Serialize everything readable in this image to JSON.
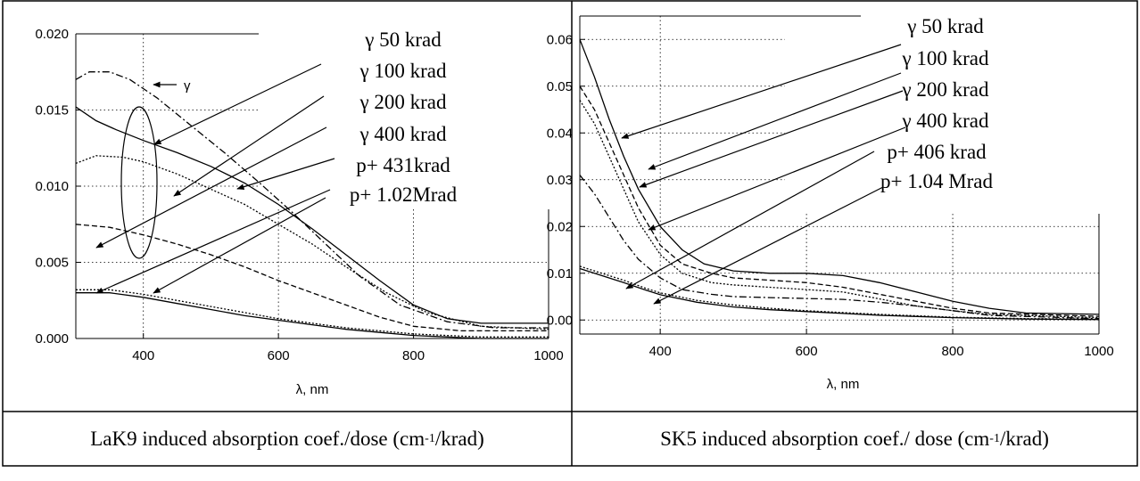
{
  "chart_data": [
    {
      "type": "line",
      "xlabel": "λ, nm",
      "ylabel": "",
      "xlim": [
        300,
        1000
      ],
      "ylim": [
        0,
        0.02
      ],
      "xticks": [
        400,
        600,
        800,
        1000
      ],
      "xtick_labels": [
        "400",
        "600",
        "800",
        "1000"
      ],
      "yticks": [
        0,
        0.005,
        0.01,
        0.015,
        0.02
      ],
      "ytick_labels": [
        "0.000",
        "0.005",
        "0.010",
        "0.015",
        "0.020"
      ],
      "grid": "dotted",
      "caption": {
        "pre": "LaK9 induced absorption coef./dose (cm",
        "sup": "-1",
        "post": "/krad)"
      },
      "group_label": "γ",
      "series": [
        {
          "name": "γ 50 krad",
          "dash": "none",
          "x": [
            300,
            330,
            360,
            400,
            450,
            500,
            550,
            600,
            650,
            700,
            750,
            800,
            850,
            900,
            1000
          ],
          "y": [
            0.0152,
            0.0143,
            0.0137,
            0.013,
            0.0122,
            0.0113,
            0.0102,
            0.0088,
            0.0072,
            0.0055,
            0.0038,
            0.0022,
            0.0013,
            0.001,
            0.001
          ]
        },
        {
          "name": "γ 100 krad",
          "dash": "8 3 2 3",
          "x": [
            300,
            320,
            350,
            380,
            420,
            470,
            520,
            570,
            620,
            670,
            720,
            780,
            850,
            920,
            1000
          ],
          "y": [
            0.017,
            0.0175,
            0.0175,
            0.017,
            0.0158,
            0.014,
            0.0122,
            0.0103,
            0.0083,
            0.0062,
            0.0041,
            0.0022,
            0.0011,
            0.0007,
            0.0007
          ]
        },
        {
          "name": "γ 200 krad",
          "dash": "2 2",
          "x": [
            300,
            330,
            370,
            400,
            450,
            500,
            550,
            600,
            650,
            700,
            760,
            820,
            900,
            1000
          ],
          "y": [
            0.0115,
            0.012,
            0.0119,
            0.0116,
            0.0108,
            0.0098,
            0.0088,
            0.0075,
            0.0062,
            0.0047,
            0.003,
            0.0017,
            0.0008,
            0.0006
          ]
        },
        {
          "name": "γ 400 krad",
          "dash": "6 3",
          "x": [
            300,
            350,
            400,
            450,
            500,
            550,
            600,
            650,
            700,
            750,
            800,
            870,
            950,
            1000
          ],
          "y": [
            0.0075,
            0.0073,
            0.0068,
            0.0062,
            0.0055,
            0.0047,
            0.0038,
            0.003,
            0.0022,
            0.0014,
            0.0008,
            0.0005,
            0.0005,
            0.0005
          ]
        },
        {
          "name": "p+ 431krad",
          "dash": "2 2",
          "x": [
            300,
            350,
            400,
            450,
            500,
            550,
            600,
            650,
            700,
            750,
            800,
            850,
            900,
            1000
          ],
          "y": [
            0.0032,
            0.0032,
            0.0029,
            0.0025,
            0.0021,
            0.0017,
            0.0013,
            0.001,
            0.0007,
            0.0005,
            0.0003,
            0.0002,
            0.0001,
            0.0001
          ]
        },
        {
          "name": "p+ 1.02Mrad",
          "dash": "none",
          "x": [
            300,
            350,
            400,
            450,
            500,
            550,
            600,
            650,
            700,
            750,
            800,
            850,
            900,
            1000
          ],
          "y": [
            0.003,
            0.003,
            0.0027,
            0.0023,
            0.0019,
            0.0015,
            0.0012,
            0.0009,
            0.0006,
            0.0004,
            0.0002,
            0.0001,
            0.0,
            0.0
          ]
        }
      ]
    },
    {
      "type": "line",
      "xlabel": "λ, nm",
      "ylabel": "",
      "xlim": [
        290,
        1000
      ],
      "ylim": [
        -0.003,
        0.065
      ],
      "xticks": [
        400,
        600,
        800,
        1000
      ],
      "xtick_labels": [
        "400",
        "600",
        "800",
        "1000"
      ],
      "yticks": [
        0,
        0.01,
        0.02,
        0.03,
        0.04,
        0.05,
        0.06
      ],
      "ytick_labels": [
        "0.00",
        "0.01",
        "0.02",
        "0.03",
        "0.04",
        "0.05",
        "0.06"
      ],
      "grid": "dotted",
      "caption": {
        "pre": "SK5 induced absorption coef./ dose (cm",
        "sup": "-1",
        "post": "/krad)"
      },
      "series": [
        {
          "name": "γ 50 krad",
          "dash": "none",
          "x": [
            290,
            310,
            330,
            350,
            370,
            400,
            430,
            460,
            500,
            550,
            600,
            650,
            700,
            750,
            800,
            850,
            900,
            1000
          ],
          "y": [
            0.06,
            0.052,
            0.043,
            0.035,
            0.028,
            0.02,
            0.015,
            0.012,
            0.0105,
            0.01,
            0.01,
            0.0095,
            0.008,
            0.006,
            0.004,
            0.0025,
            0.0015,
            0.0012
          ]
        },
        {
          "name": "γ 100 krad",
          "dash": "6 3",
          "x": [
            290,
            310,
            330,
            350,
            370,
            400,
            430,
            470,
            500,
            550,
            600,
            650,
            700,
            750,
            800,
            850,
            1000
          ],
          "y": [
            0.05,
            0.045,
            0.038,
            0.031,
            0.024,
            0.016,
            0.012,
            0.01,
            0.009,
            0.0085,
            0.008,
            0.007,
            0.0055,
            0.004,
            0.0025,
            0.0015,
            0.0008
          ]
        },
        {
          "name": "γ 200 krad",
          "dash": "2 2",
          "x": [
            290,
            310,
            330,
            350,
            370,
            400,
            430,
            470,
            500,
            550,
            600,
            650,
            700,
            750,
            800,
            850,
            1000
          ],
          "y": [
            0.047,
            0.042,
            0.035,
            0.028,
            0.021,
            0.014,
            0.01,
            0.008,
            0.0075,
            0.007,
            0.0065,
            0.006,
            0.0045,
            0.003,
            0.002,
            0.0012,
            0.0005
          ]
        },
        {
          "name": "γ 400 krad",
          "dash": "8 3 2 3",
          "x": [
            290,
            310,
            330,
            350,
            370,
            400,
            430,
            470,
            500,
            550,
            600,
            650,
            700,
            750,
            800,
            850,
            1000
          ],
          "y": [
            0.031,
            0.027,
            0.022,
            0.017,
            0.013,
            0.009,
            0.0065,
            0.0055,
            0.005,
            0.0048,
            0.0046,
            0.0044,
            0.0038,
            0.003,
            0.002,
            0.001,
            0.0003
          ]
        },
        {
          "name": "p+ 406 krad",
          "dash": "2 2",
          "x": [
            290,
            320,
            350,
            380,
            400,
            450,
            500,
            550,
            600,
            650,
            700,
            800,
            900,
            1000
          ],
          "y": [
            0.0115,
            0.01,
            0.0085,
            0.0068,
            0.0058,
            0.0042,
            0.0032,
            0.0025,
            0.002,
            0.0016,
            0.0012,
            0.0006,
            0.0003,
            0.0002
          ]
        },
        {
          "name": "p+ 1.04 Mrad",
          "dash": "none",
          "x": [
            290,
            320,
            350,
            380,
            400,
            450,
            500,
            550,
            600,
            650,
            700,
            800,
            900,
            1000
          ],
          "y": [
            0.011,
            0.0095,
            0.008,
            0.0064,
            0.0054,
            0.0038,
            0.0028,
            0.0022,
            0.0018,
            0.0014,
            0.001,
            0.0005,
            0.0002,
            0.0001
          ]
        }
      ]
    }
  ]
}
